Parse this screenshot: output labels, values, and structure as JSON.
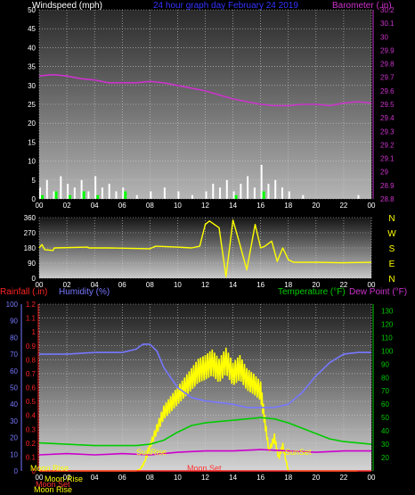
{
  "header": {
    "title": "24 hour graph day   February 24 2019",
    "wind_label": "Windspeed (mph)",
    "baro_label": "Barometer (.in)"
  },
  "colors": {
    "wind_label": "#ffffff",
    "title": "#3333ff",
    "baro": "#cc33cc",
    "wind": "#ffffff",
    "gust": "#00ff00",
    "direction": "#ffff00",
    "rain": "#ff2222",
    "humidity": "#7777ff",
    "temperature": "#00cc00",
    "dewpoint": "#cc00cc",
    "solar": "#ffff00",
    "axis_yellow": "#ffff00"
  },
  "chart_data": [
    {
      "type": "line",
      "panel": "wind_barometer",
      "x_ticks": [
        "00",
        "02",
        "04",
        "06",
        "08",
        "10",
        "12",
        "14",
        "16",
        "18",
        "20",
        "22",
        "00"
      ],
      "left_axis": {
        "label": "Windspeed (mph)",
        "range": [
          0,
          50
        ],
        "ticks": [
          0,
          5,
          10,
          15,
          20,
          25,
          30,
          35,
          40,
          45,
          50
        ]
      },
      "right_axis": {
        "label": "Barometer (.in)",
        "range": [
          28.8,
          30.2
        ],
        "ticks": [
          "28.8",
          "28.9",
          "29",
          "29.1",
          "29.2",
          "29.3",
          "29.4",
          "29.5",
          "29.6",
          "29.7",
          "29.8",
          "29.9",
          "30",
          "30.1",
          "30.2"
        ]
      },
      "grid": true,
      "series": [
        {
          "axis": "right",
          "hours": [
            0,
            1,
            2,
            3,
            4,
            5,
            6,
            7,
            8,
            9,
            10,
            11,
            12,
            13,
            14,
            15,
            16,
            17,
            18,
            19,
            20,
            21,
            22,
            23,
            24
          ],
          "values": [
            29.71,
            29.72,
            29.71,
            29.69,
            29.68,
            29.66,
            29.66,
            29.66,
            29.67,
            29.66,
            29.64,
            29.62,
            29.6,
            29.57,
            29.54,
            29.52,
            29.5,
            29.49,
            29.49,
            29.5,
            29.5,
            29.49,
            29.51,
            29.52,
            29.51
          ]
        },
        {
          "axis": "left",
          "hours": [
            0,
            0.5,
            1,
            1.5,
            2,
            2.5,
            3,
            3.5,
            4,
            4.5,
            5,
            5.5,
            6,
            7,
            8,
            9,
            10,
            11,
            12,
            12.5,
            13,
            13.5,
            14,
            14.5,
            15,
            15.5,
            16,
            16.5,
            17,
            17.5,
            18,
            19,
            20,
            21,
            22,
            23,
            24
          ],
          "values": [
            3,
            5,
            2,
            6,
            4,
            3,
            5,
            2,
            6,
            3,
            4,
            2,
            3,
            1,
            2,
            3,
            2,
            1,
            2,
            4,
            3,
            5,
            2,
            4,
            6,
            3,
            9,
            4,
            5,
            3,
            2,
            1,
            0,
            0,
            0,
            1,
            0
          ]
        },
        {
          "axis": "left",
          "hours": [
            0,
            1,
            2,
            3,
            4,
            5,
            6,
            8,
            10,
            12,
            14,
            15,
            16,
            17,
            18,
            20,
            22,
            24
          ],
          "values": [
            1,
            2,
            1,
            2,
            1,
            0,
            2,
            0,
            0,
            0,
            1,
            0,
            2,
            0,
            0,
            0,
            0,
            0
          ]
        }
      ]
    },
    {
      "type": "line",
      "panel": "wind_direction",
      "x_ticks": [
        "00",
        "02",
        "04",
        "06",
        "08",
        "10",
        "12",
        "14",
        "16",
        "18",
        "20",
        "22",
        "00"
      ],
      "left_axis": {
        "range": [
          0,
          360
        ],
        "ticks": [
          0,
          90,
          180,
          270,
          360
        ]
      },
      "right_axis": {
        "ticks": [
          "N",
          "W",
          "S",
          "E",
          "N"
        ]
      },
      "grid": true,
      "series": [
        {
          "hours": [
            0,
            0.2,
            0.4,
            1,
            1.1,
            3.5,
            3.6,
            5,
            8,
            8.4,
            10,
            11,
            11.6,
            12,
            12.3,
            13,
            13.5,
            14,
            14.5,
            15,
            15.6,
            16,
            16.3,
            16.8,
            17.2,
            17.6,
            18,
            18.4,
            20,
            22,
            24
          ],
          "values": [
            180,
            200,
            170,
            165,
            180,
            185,
            180,
            180,
            175,
            190,
            185,
            180,
            190,
            320,
            340,
            300,
            10,
            345,
            200,
            50,
            320,
            180,
            190,
            220,
            100,
            180,
            110,
            95,
            95,
            92,
            95
          ]
        }
      ]
    },
    {
      "type": "line",
      "panel": "rain_humidity_temperature",
      "x_ticks": [
        "00",
        "02",
        "04",
        "06",
        "08",
        "10",
        "12",
        "14",
        "16",
        "18",
        "20",
        "22",
        "00"
      ],
      "left_axis_rain": {
        "label": "Rainfall (.in)",
        "range": [
          0,
          1.2
        ],
        "ticks": [
          "0",
          "0.1",
          "0.2",
          "0.3",
          "0.4",
          "0.5",
          "0.6",
          "0.7",
          "0.8",
          "0.9",
          "1",
          "1.1",
          "1.2"
        ]
      },
      "left_axis_humidity": {
        "label": "Humidity (%)",
        "range": [
          0,
          100
        ],
        "ticks": [
          0,
          10,
          20,
          30,
          40,
          50,
          60,
          70,
          80,
          90,
          100
        ]
      },
      "right_axis": {
        "label": "Temperature (°F)",
        "label2": "Dew Point (°F)",
        "range": [
          10,
          135
        ],
        "ticks": [
          20,
          30,
          40,
          50,
          60,
          70,
          80,
          90,
          100,
          110,
          120,
          130
        ]
      },
      "grid": true,
      "series": [
        {
          "name": "humidity",
          "hours": [
            0,
            2,
            4,
            6,
            7,
            7.5,
            8,
            8.5,
            9,
            10,
            11,
            12,
            13,
            14,
            15,
            16,
            17,
            18,
            19,
            20,
            21,
            22,
            23,
            24
          ],
          "values": [
            70,
            70,
            71,
            71,
            73,
            76,
            76,
            72,
            62,
            50,
            44,
            42,
            41,
            40,
            38,
            38,
            38,
            40,
            47,
            57,
            65,
            70,
            71,
            71
          ]
        },
        {
          "name": "temperature",
          "hours": [
            0,
            2,
            4,
            6,
            7,
            8,
            9,
            10,
            11,
            12,
            13,
            14,
            15,
            16,
            17,
            18,
            19,
            20,
            21,
            22,
            23,
            24
          ],
          "values": [
            31,
            30,
            29,
            29,
            29,
            30,
            33,
            39,
            44,
            46,
            47,
            48,
            49,
            50,
            49,
            46,
            42,
            38,
            34,
            32,
            31,
            30
          ]
        },
        {
          "name": "dewpoint",
          "hours": [
            0,
            2,
            4,
            6,
            8,
            10,
            12,
            14,
            16,
            18,
            20,
            22,
            24
          ],
          "values": [
            22,
            23,
            22,
            23,
            22,
            24,
            25,
            25,
            26,
            25,
            24,
            25,
            25
          ]
        },
        {
          "name": "solar",
          "hours": [
            0,
            7,
            7.3,
            7.6,
            8,
            8.5,
            9,
            9.5,
            10,
            10.5,
            11,
            11.5,
            12,
            12.5,
            13,
            13.5,
            14,
            14.5,
            15,
            15.5,
            16,
            16.3,
            16.6,
            17,
            17.3,
            17.6,
            18,
            24
          ],
          "values": [
            0,
            0,
            1,
            5,
            15,
            25,
            35,
            40,
            45,
            50,
            55,
            60,
            62,
            65,
            60,
            66,
            58,
            62,
            55,
            52,
            48,
            30,
            12,
            20,
            8,
            15,
            0,
            0
          ]
        },
        {
          "name": "rain",
          "hours": [
            0,
            24
          ],
          "values": [
            0,
            0
          ]
        }
      ],
      "annotations": [
        "SunRise",
        "SunSet",
        "Moon Rise",
        "Moon Set",
        "Moon Rise",
        "Moon Set",
        "Moon Rise"
      ]
    }
  ],
  "panel3": {
    "rain_label": "Rainfall (.in)",
    "humidity_label": "Humidity (%)",
    "temp_label": "Temperature (°F)",
    "dew_label": "Dew Point (°F)",
    "sunrise": "SunRise",
    "sunset": "SunSet",
    "moonrise": "Moon Rise",
    "moonset": "Moon Set",
    "moonrise2": "Moon Rise",
    "moonset2": "Moon Set",
    "moonrise3": "Moon Rise"
  }
}
